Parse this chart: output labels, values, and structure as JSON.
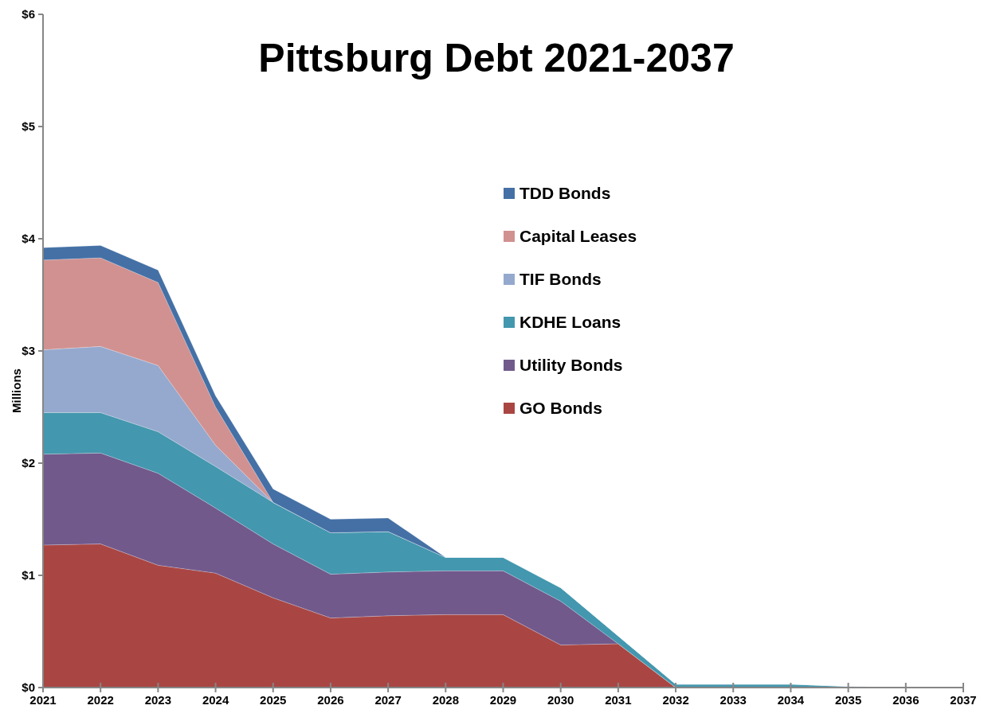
{
  "chart_data": {
    "type": "area",
    "stacked": true,
    "title": "Pittsburg Debt  2021-2037",
    "ylabel": "Millions",
    "x": [
      2021,
      2022,
      2023,
      2024,
      2025,
      2026,
      2027,
      2028,
      2029,
      2030,
      2031,
      2032,
      2033,
      2034,
      2035,
      2036,
      2037
    ],
    "xlim": [
      2021,
      2037
    ],
    "xticks": [
      2021,
      2022,
      2023,
      2024,
      2025,
      2026,
      2027,
      2028,
      2029,
      2030,
      2031,
      2032,
      2033,
      2034,
      2035,
      2036,
      2037
    ],
    "ylim": [
      0,
      6
    ],
    "yticks": [
      {
        "value": 0,
        "label": "$0"
      },
      {
        "value": 1,
        "label": "$1"
      },
      {
        "value": 2,
        "label": "$2"
      },
      {
        "value": 3,
        "label": "$3"
      },
      {
        "value": 4,
        "label": "$4"
      },
      {
        "value": 5,
        "label": "$5"
      },
      {
        "value": 6,
        "label": "$6"
      }
    ],
    "grid": false,
    "legend": "right",
    "series": [
      {
        "name": "GO Bonds",
        "color": "#a94643",
        "values": [
          1.27,
          1.28,
          1.09,
          1.02,
          0.8,
          0.62,
          0.64,
          0.65,
          0.65,
          0.38,
          0.39,
          0,
          0,
          0,
          0,
          0,
          0
        ]
      },
      {
        "name": "Utility Bonds",
        "color": "#71598c",
        "values": [
          0.81,
          0.81,
          0.82,
          0.58,
          0.48,
          0.39,
          0.39,
          0.39,
          0.39,
          0.39,
          0,
          0,
          0,
          0,
          0,
          0,
          0
        ]
      },
      {
        "name": "KDHE Loans",
        "color": "#4397ae",
        "values": [
          0.37,
          0.36,
          0.37,
          0.37,
          0.37,
          0.37,
          0.36,
          0.12,
          0.12,
          0.12,
          0.07,
          0.03,
          0.03,
          0.03,
          0.01,
          0,
          0
        ]
      },
      {
        "name": "TIF Bonds",
        "color": "#95a9ce",
        "values": [
          0.56,
          0.59,
          0.59,
          0.19,
          0,
          0,
          0,
          0,
          0,
          0,
          0,
          0,
          0,
          0,
          0,
          0,
          0
        ]
      },
      {
        "name": "Capital Leases",
        "color": "#d19190",
        "values": [
          0.8,
          0.79,
          0.74,
          0.34,
          0,
          0,
          0,
          0,
          0,
          0,
          0,
          0,
          0,
          0,
          0,
          0,
          0
        ]
      },
      {
        "name": "TDD Bonds",
        "color": "#4470a5",
        "values": [
          0.11,
          0.11,
          0.11,
          0.1,
          0.12,
          0.12,
          0.12,
          0,
          0,
          0,
          0,
          0,
          0,
          0,
          0,
          0,
          0
        ]
      }
    ]
  }
}
